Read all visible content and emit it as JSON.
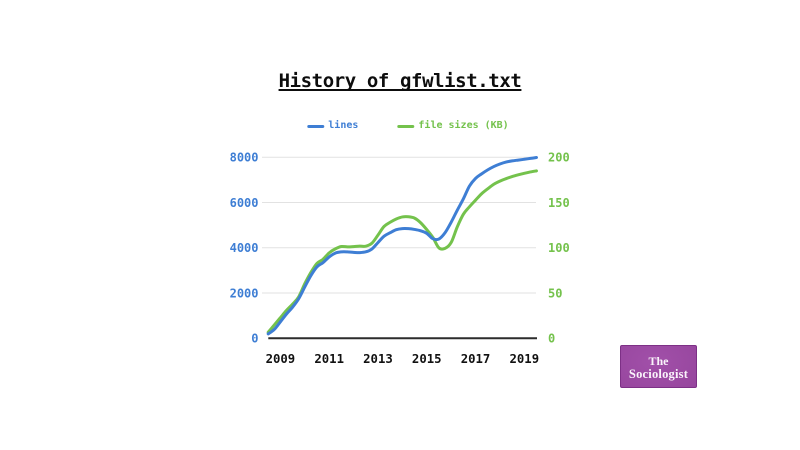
{
  "title": "History of gfwlist.txt",
  "legend": {
    "items": [
      {
        "label": "lines",
        "color": "#3e7ed4"
      },
      {
        "label": "file sizes (KB)",
        "color": "#74c24c"
      }
    ]
  },
  "chart_data": {
    "type": "line",
    "title": "History of gfwlist.txt",
    "x": [
      2008.5,
      2008.75,
      2009.0,
      2009.25,
      2009.5,
      2009.75,
      2010.0,
      2010.25,
      2010.5,
      2010.75,
      2011.0,
      2011.25,
      2011.5,
      2011.75,
      2012.0,
      2012.25,
      2012.5,
      2012.75,
      2013.0,
      2013.25,
      2013.5,
      2013.75,
      2014.0,
      2014.25,
      2014.5,
      2014.75,
      2015.0,
      2015.25,
      2015.5,
      2015.75,
      2016.0,
      2016.25,
      2016.5,
      2016.75,
      2017.0,
      2017.25,
      2017.5,
      2017.75,
      2018.0,
      2018.25,
      2018.5,
      2018.75,
      2019.0,
      2019.25,
      2019.5
    ],
    "series": [
      {
        "name": "lines",
        "axis": "left",
        "color": "#3e7ed4",
        "values": [
          195,
          391,
          731,
          1074,
          1377,
          1747,
          2269,
          2772,
          3160,
          3345,
          3597,
          3766,
          3820,
          3820,
          3799,
          3788,
          3820,
          3946,
          4230,
          4513,
          4666,
          4800,
          4849,
          4847,
          4812,
          4752,
          4640,
          4402,
          4390,
          4664,
          5127,
          5657,
          6159,
          6726,
          7066,
          7268,
          7444,
          7591,
          7704,
          7790,
          7841,
          7877,
          7913,
          7951,
          7990
        ]
      },
      {
        "name": "file sizes (KB)",
        "axis": "right",
        "color": "#74c24c",
        "values": [
          6.7,
          14.8,
          22.8,
          30.8,
          37.8,
          45.8,
          60.3,
          72.8,
          82.8,
          87.4,
          94.4,
          98.8,
          101.4,
          101.0,
          101.3,
          101.9,
          101.8,
          105.0,
          114.0,
          123.6,
          128.2,
          131.8,
          134.1,
          134.3,
          132.8,
          127.7,
          120.1,
          111.5,
          99.9,
          99.3,
          105.8,
          123.0,
          137.0,
          145.3,
          152.6,
          159.7,
          165.2,
          170.2,
          173.7,
          176.4,
          178.7,
          180.6,
          182.3,
          183.8,
          185.0
        ]
      }
    ],
    "axes": {
      "x": {
        "ticks": [
          2009,
          2011,
          2013,
          2015,
          2017,
          2019
        ],
        "range": [
          2008.5,
          2019.5
        ],
        "color": "#111111"
      },
      "left": {
        "ticks": [
          0,
          2000,
          4000,
          6000,
          8000
        ],
        "range": [
          0,
          8000
        ],
        "color": "#3e7ed4"
      },
      "right": {
        "ticks": [
          0,
          50,
          100,
          150,
          200
        ],
        "range": [
          0,
          200
        ],
        "color": "#74c24c"
      }
    },
    "grid": {
      "horizontal": true,
      "vertical": false,
      "color": "#e2e2e2"
    },
    "axis_line_color": "#2c2c2c",
    "legend_position": "top"
  },
  "logo": {
    "line1": "The",
    "line2": "Sociologist",
    "background": "#96459f",
    "text_color": "#faf4fb"
  }
}
